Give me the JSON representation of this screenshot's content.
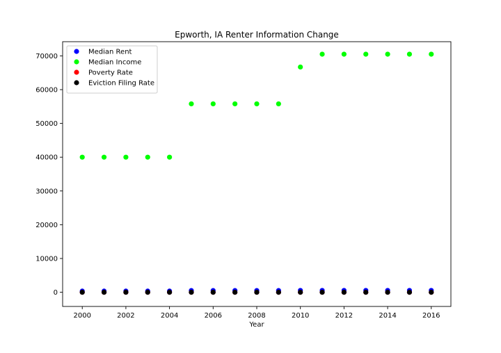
{
  "chart_data": {
    "type": "scatter",
    "title": "Epworth, IA Renter Information Change",
    "xlabel": "Year",
    "ylabel": "",
    "xlim": [
      1999.1,
      2016.9
    ],
    "ylim": [
      -4200,
      74200
    ],
    "xticks": [
      2000,
      2002,
      2004,
      2006,
      2008,
      2010,
      2012,
      2014,
      2016
    ],
    "xtick_labels": [
      "2000",
      "2002",
      "2004",
      "2006",
      "2008",
      "2010",
      "2012",
      "2014",
      "2016"
    ],
    "yticks": [
      0,
      10000,
      20000,
      30000,
      40000,
      50000,
      60000,
      70000
    ],
    "ytick_labels": [
      "0",
      "10000",
      "20000",
      "30000",
      "40000",
      "50000",
      "60000",
      "70000"
    ],
    "grid": false,
    "legend_position": "top-left",
    "x": [
      2000,
      2001,
      2002,
      2003,
      2004,
      2005,
      2006,
      2007,
      2008,
      2009,
      2010,
      2011,
      2012,
      2013,
      2014,
      2015,
      2016
    ],
    "series": [
      {
        "name": "Median Rent",
        "color": "#0000ff",
        "values": [
          350,
          350,
          350,
          350,
          350,
          500,
          500,
          500,
          500,
          500,
          550,
          550,
          550,
          550,
          550,
          550,
          550
        ]
      },
      {
        "name": "Median Income",
        "color": "#00ff00",
        "values": [
          40000,
          40000,
          40000,
          40000,
          40000,
          55800,
          55800,
          55800,
          55800,
          55800,
          66700,
          70500,
          70500,
          70500,
          70500,
          70500,
          70500
        ]
      },
      {
        "name": "Poverty Rate",
        "color": "#ff0000",
        "values": [
          5,
          5,
          5,
          5,
          5,
          3,
          3,
          3,
          3,
          3,
          4,
          4,
          4,
          4,
          4,
          4,
          4
        ]
      },
      {
        "name": "Eviction Filing Rate",
        "color": "#000000",
        "values": [
          0,
          0,
          0,
          0,
          0,
          0,
          0,
          0,
          0,
          0,
          0,
          0,
          0,
          0,
          0,
          0,
          0
        ]
      }
    ]
  }
}
